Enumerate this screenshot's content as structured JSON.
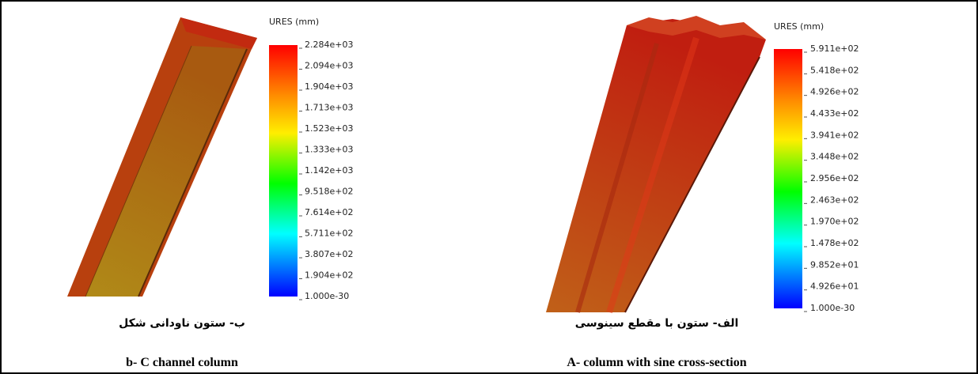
{
  "panels": [
    {
      "legend_title": "URES (mm)",
      "legend_labels": [
        "2.284e+03",
        "2.094e+03",
        "1.904e+03",
        "1.713e+03",
        "1.523e+03",
        "1.333e+03",
        "1.142e+03",
        "9.518e+02",
        "7.614e+02",
        "5.711e+02",
        "3.807e+02",
        "1.904e+02",
        "1.000e-30"
      ],
      "caption_fa": "ب- ستون ناودانی شکل",
      "caption_en": "b- C channel column"
    },
    {
      "legend_title": "URES (mm)",
      "legend_labels": [
        "5.911e+02",
        "5.418e+02",
        "4.926e+02",
        "4.433e+02",
        "3.941e+02",
        "3.448e+02",
        "2.956e+02",
        "2.463e+02",
        "1.970e+02",
        "1.478e+02",
        "9.852e+01",
        "4.926e+01",
        "1.000e-30"
      ],
      "caption_fa": "الف- ستون با مقطع سینوسی",
      "caption_en": "A- column with sine cross-section"
    }
  ]
}
